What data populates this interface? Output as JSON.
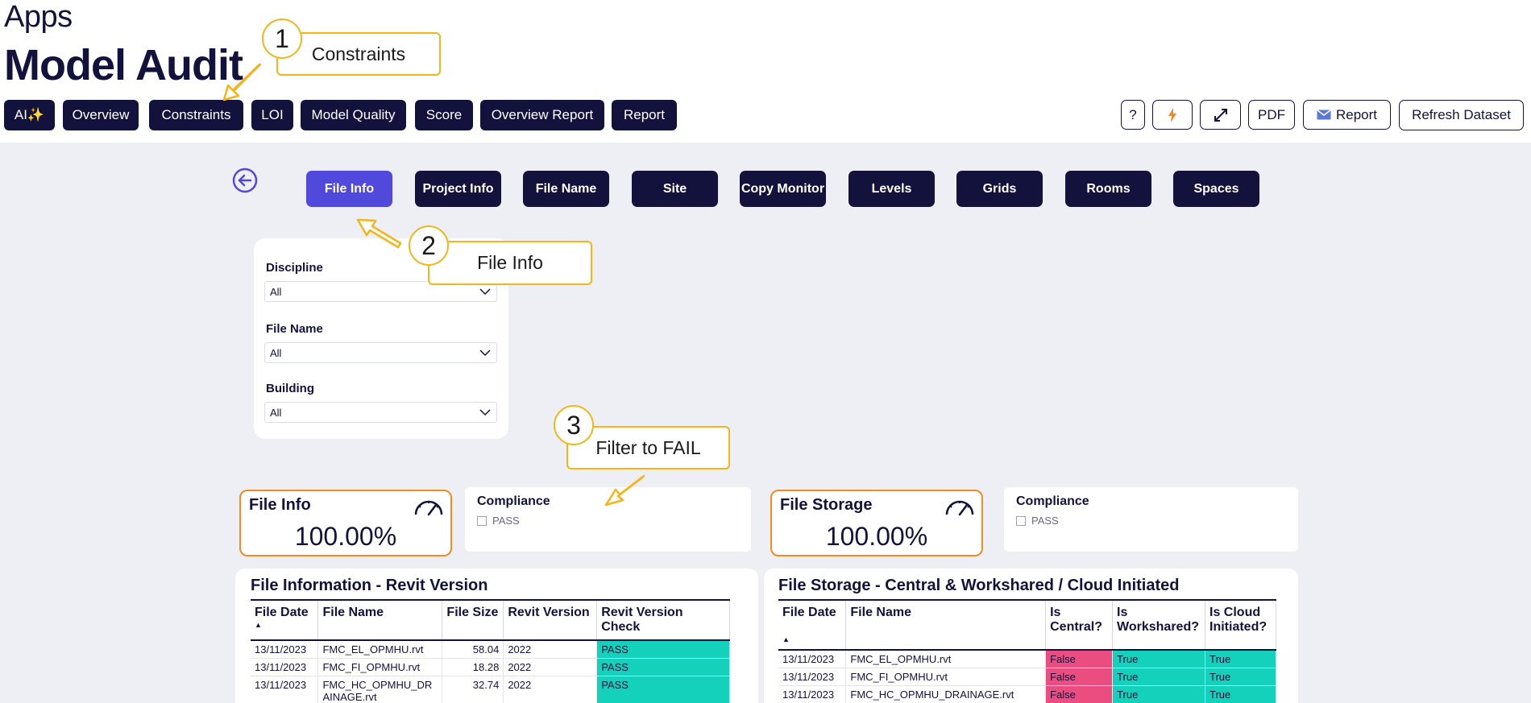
{
  "header": {
    "apps_label": "Apps",
    "title": "Model Audit",
    "nav": [
      "AI✨",
      "Overview",
      "Constraints",
      "LOI",
      "Model Quality",
      "Score",
      "Overview Report",
      "Report"
    ],
    "tools": {
      "help_label": "?",
      "flash_icon": "lightning-icon",
      "expand_icon": "expand-icon",
      "pdf_label": "PDF",
      "report_label": "Report",
      "refresh_label": "Refresh Dataset"
    }
  },
  "subnav": {
    "back_icon": "back-arrow-icon",
    "tabs": [
      "File Info",
      "Project Info",
      "File Name",
      "Site",
      "Copy Monitor",
      "Levels",
      "Grids",
      "Rooms",
      "Spaces"
    ],
    "active": "File Info"
  },
  "filters": [
    {
      "label": "Discipline",
      "value": "All"
    },
    {
      "label": "File Name",
      "value": "All"
    },
    {
      "label": "Building",
      "value": "All"
    }
  ],
  "kpis": [
    {
      "title": "File Info",
      "value": "100.00%"
    },
    {
      "title": "File Storage",
      "value": "100.00%"
    }
  ],
  "compliance": [
    {
      "title": "Compliance",
      "option": "PASS"
    },
    {
      "title": "Compliance",
      "option": "PASS"
    }
  ],
  "revit_table": {
    "title": "File Information - Revit Version",
    "columns": [
      "File Date",
      "File Name",
      "File Size",
      "Revit Version",
      "Revit Version Check"
    ],
    "rows": [
      [
        "13/11/2023",
        "FMC_EL_OPMHU.rvt",
        "58.04",
        "2022",
        "PASS"
      ],
      [
        "13/11/2023",
        "FMC_FI_OPMHU.rvt",
        "18.28",
        "2022",
        "PASS"
      ],
      [
        "13/11/2023",
        "FMC_HC_OPMHU_DRAINAGE.rvt",
        "32.74",
        "2022",
        "PASS"
      ]
    ]
  },
  "storage_table": {
    "title": "File Storage - Central & Workshared / Cloud Initiated",
    "columns": [
      "File Date",
      "File Name",
      "Is Central?",
      "Is Workshared?",
      "Is Cloud Initiated?"
    ],
    "rows": [
      [
        "13/11/2023",
        "FMC_EL_OPMHU.rvt",
        "False",
        "True",
        "True"
      ],
      [
        "13/11/2023",
        "FMC_FI_OPMHU.rvt",
        "False",
        "True",
        "True"
      ],
      [
        "13/11/2023",
        "FMC_HC_OPMHU_DRAINAGE.rvt",
        "False",
        "True",
        "True"
      ]
    ]
  },
  "annotations": [
    {
      "number": "1",
      "text": "Constraints"
    },
    {
      "number": "2",
      "text": "File Info"
    },
    {
      "number": "3",
      "text": "Filter to FAIL"
    }
  ],
  "colors": {
    "navy": "#13123d",
    "active_tab": "#5149dc",
    "pass": "#14d1bc",
    "fail": "#eb4d80",
    "kpi_border": "#f28b22",
    "callout": "#f5b418"
  }
}
